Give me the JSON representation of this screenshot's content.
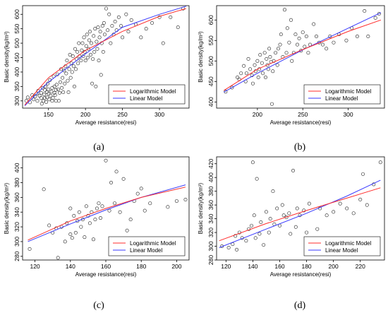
{
  "chart_data": [
    {
      "type": "scatter",
      "panel_label": "(a)",
      "xlabel": "Average resistance(resi)",
      "ylabel": "Basic density(kg/m³)",
      "xlim": [
        115,
        340
      ],
      "ylim": [
        275,
        630
      ],
      "xticks": [
        150,
        200,
        250,
        300
      ],
      "yticks": [
        300,
        350,
        400,
        450,
        500,
        550,
        600
      ],
      "legend": [
        "Logarithmic Model",
        "Linear Model"
      ],
      "legend_position": "bottom-right",
      "colors": {
        "log": "#ff2d2d",
        "linear": "#3a3aff",
        "points": "#222222"
      },
      "points": [
        [
          120,
          300
        ],
        [
          122,
          312
        ],
        [
          125,
          295
        ],
        [
          128,
          320
        ],
        [
          130,
          305
        ],
        [
          132,
          315
        ],
        [
          134,
          325
        ],
        [
          135,
          300
        ],
        [
          136,
          335
        ],
        [
          138,
          318
        ],
        [
          140,
          310
        ],
        [
          140,
          328
        ],
        [
          141,
          290
        ],
        [
          142,
          345
        ],
        [
          143,
          300
        ],
        [
          144,
          322
        ],
        [
          145,
          338
        ],
        [
          145,
          310
        ],
        [
          146,
          350
        ],
        [
          147,
          296
        ],
        [
          148,
          330
        ],
        [
          148,
          312
        ],
        [
          149,
          360
        ],
        [
          150,
          325
        ],
        [
          150,
          340
        ],
        [
          151,
          305
        ],
        [
          152,
          372
        ],
        [
          153,
          318
        ],
        [
          154,
          332
        ],
        [
          155,
          345
        ],
        [
          155,
          300
        ],
        [
          156,
          310
        ],
        [
          157,
          385
        ],
        [
          158,
          328
        ],
        [
          158,
          350
        ],
        [
          159,
          320
        ],
        [
          160,
          300
        ],
        [
          160,
          338
        ],
        [
          161,
          356
        ],
        [
          162,
          392
        ],
        [
          163,
          340
        ],
        [
          164,
          300
        ],
        [
          165,
          328
        ],
        [
          166,
          365
        ],
        [
          167,
          410
        ],
        [
          168,
          345
        ],
        [
          169,
          380
        ],
        [
          170,
          330
        ],
        [
          171,
          405
        ],
        [
          172,
          360
        ],
        [
          173,
          420
        ],
        [
          174,
          395
        ],
        [
          175,
          440
        ],
        [
          176,
          370
        ],
        [
          177,
          330
        ],
        [
          178,
          410
        ],
        [
          179,
          460
        ],
        [
          180,
          380
        ],
        [
          181,
          430
        ],
        [
          182,
          400
        ],
        [
          183,
          455
        ],
        [
          184,
          420
        ],
        [
          185,
          350
        ],
        [
          186,
          480
        ],
        [
          187,
          410
        ],
        [
          188,
          445
        ],
        [
          189,
          470
        ],
        [
          190,
          430
        ],
        [
          191,
          500
        ],
        [
          192,
          455
        ],
        [
          194,
          440
        ],
        [
          195,
          475
        ],
        [
          196,
          500
        ],
        [
          197,
          455
        ],
        [
          198,
          520
        ],
        [
          199,
          470
        ],
        [
          200,
          440
        ],
        [
          201,
          490
        ],
        [
          202,
          530
        ],
        [
          203,
          450
        ],
        [
          204,
          480
        ],
        [
          205,
          510
        ],
        [
          206,
          540
        ],
        [
          207,
          460
        ],
        [
          208,
          500
        ],
        [
          209,
          360
        ],
        [
          210,
          445
        ],
        [
          211,
          525
        ],
        [
          212,
          470
        ],
        [
          213,
          550
        ],
        [
          214,
          350
        ],
        [
          215,
          505
        ],
        [
          216,
          480
        ],
        [
          217,
          555
        ],
        [
          218,
          440
        ],
        [
          219,
          520
        ],
        [
          220,
          540
        ],
        [
          221,
          390
        ],
        [
          222,
          500
        ],
        [
          223,
          560
        ],
        [
          224,
          470
        ],
        [
          225,
          570
        ],
        [
          226,
          530
        ],
        [
          228,
          620
        ],
        [
          230,
          545
        ],
        [
          232,
          600
        ],
        [
          234,
          500
        ],
        [
          236,
          560
        ],
        [
          238,
          530
        ],
        [
          240,
          575
        ],
        [
          242,
          545
        ],
        [
          245,
          590
        ],
        [
          248,
          560
        ],
        [
          250,
          520
        ],
        [
          255,
          600
        ],
        [
          258,
          540
        ],
        [
          262,
          580
        ],
        [
          268,
          565
        ],
        [
          275,
          520
        ],
        [
          282,
          550
        ],
        [
          290,
          570
        ],
        [
          300,
          590
        ],
        [
          305,
          500
        ],
        [
          315,
          590
        ],
        [
          325,
          555
        ],
        [
          332,
          620
        ]
      ],
      "log_curve": [
        [
          118,
          286
        ],
        [
          150,
          380
        ],
        [
          200,
          475
        ],
        [
          250,
          541
        ],
        [
          300,
          593
        ],
        [
          336,
          620
        ]
      ],
      "linear_curve": [
        [
          118,
          283
        ],
        [
          150,
          365
        ],
        [
          200,
          463
        ],
        [
          250,
          555
        ],
        [
          300,
          600
        ],
        [
          336,
          628
        ]
      ]
    },
    {
      "type": "scatter",
      "panel_label": "(b)",
      "xlabel": "Average resistance(resi)",
      "ylabel": "Basic density(kg/m³)",
      "xlim": [
        155,
        340
      ],
      "ylim": [
        385,
        635
      ],
      "xticks": [
        200,
        250,
        300
      ],
      "yticks": [
        400,
        450,
        500,
        550,
        600
      ],
      "legend": [
        "Logarithmic Model",
        "Linear Model"
      ],
      "legend_position": "bottom-right",
      "colors": {
        "log": "#ff2d2d",
        "linear": "#3a3aff",
        "points": "#222222"
      },
      "points": [
        [
          165,
          425
        ],
        [
          172,
          435
        ],
        [
          178,
          460
        ],
        [
          180,
          455
        ],
        [
          182,
          470
        ],
        [
          185,
          488
        ],
        [
          187,
          450
        ],
        [
          188,
          470
        ],
        [
          190,
          505
        ],
        [
          192,
          480
        ],
        [
          194,
          465
        ],
        [
          195,
          445
        ],
        [
          197,
          490
        ],
        [
          198,
          475
        ],
        [
          200,
          500
        ],
        [
          201,
          460
        ],
        [
          202,
          480
        ],
        [
          203,
          515
        ],
        [
          205,
          495
        ],
        [
          206,
          470
        ],
        [
          208,
          520
        ],
        [
          209,
          460
        ],
        [
          210,
          505
        ],
        [
          211,
          490
        ],
        [
          212,
          480
        ],
        [
          213,
          530
        ],
        [
          214,
          510
        ],
        [
          215,
          498
        ],
        [
          216,
          395
        ],
        [
          217,
          475
        ],
        [
          218,
          500
        ],
        [
          220,
          520
        ],
        [
          222,
          490
        ],
        [
          223,
          530
        ],
        [
          225,
          540
        ],
        [
          226,
          565
        ],
        [
          228,
          510
        ],
        [
          230,
          625
        ],
        [
          232,
          520
        ],
        [
          233,
          580
        ],
        [
          235,
          545
        ],
        [
          237,
          600
        ],
        [
          238,
          500
        ],
        [
          240,
          520
        ],
        [
          242,
          565
        ],
        [
          244,
          540
        ],
        [
          246,
          555
        ],
        [
          248,
          525
        ],
        [
          250,
          570
        ],
        [
          252,
          535
        ],
        [
          254,
          560
        ],
        [
          256,
          520
        ],
        [
          258,
          540
        ],
        [
          262,
          590
        ],
        [
          265,
          560
        ],
        [
          268,
          545
        ],
        [
          272,
          540
        ],
        [
          276,
          530
        ],
        [
          280,
          560
        ],
        [
          284,
          545
        ],
        [
          290,
          565
        ],
        [
          298,
          550
        ],
        [
          304,
          580
        ],
        [
          310,
          560
        ],
        [
          318,
          622
        ],
        [
          322,
          560
        ],
        [
          330,
          605
        ],
        [
          334,
          615
        ]
      ],
      "log_curve": [
        [
          163,
          428
        ],
        [
          200,
          480
        ],
        [
          250,
          528
        ],
        [
          300,
          572
        ],
        [
          336,
          600
        ]
      ],
      "linear_curve": [
        [
          163,
          424
        ],
        [
          200,
          470
        ],
        [
          250,
          527
        ],
        [
          300,
          580
        ],
        [
          336,
          618
        ]
      ]
    },
    {
      "type": "scatter",
      "panel_label": "(c)",
      "xlabel": "Average resistance(resi)",
      "ylabel": "Basic density(kg/m³)",
      "xlim": [
        113,
        207
      ],
      "ylim": [
        275,
        415
      ],
      "xticks": [
        120,
        140,
        160,
        180,
        200
      ],
      "yticks": [
        280,
        300,
        320,
        340,
        360,
        380,
        400
      ],
      "legend": [
        "Logarithmic Model",
        "Linear Model"
      ],
      "legend_position": "bottom-right",
      "colors": {
        "log": "#ff2d2d",
        "linear": "#3a3aff",
        "points": "#222222"
      },
      "points": [
        [
          117,
          290
        ],
        [
          125,
          371
        ],
        [
          128,
          322
        ],
        [
          130,
          312
        ],
        [
          132,
          318
        ],
        [
          133,
          278
        ],
        [
          135,
          320
        ],
        [
          137,
          300
        ],
        [
          138,
          325
        ],
        [
          140,
          345
        ],
        [
          140,
          310
        ],
        [
          141,
          305
        ],
        [
          142,
          335
        ],
        [
          143,
          312
        ],
        [
          144,
          328
        ],
        [
          145,
          340
        ],
        [
          146,
          320
        ],
        [
          147,
          330
        ],
        [
          148,
          306
        ],
        [
          149,
          348
        ],
        [
          150,
          335
        ],
        [
          151,
          325
        ],
        [
          152,
          340
        ],
        [
          153,
          303
        ],
        [
          154,
          330
        ],
        [
          155,
          345
        ],
        [
          156,
          352
        ],
        [
          157,
          332
        ],
        [
          158,
          348
        ],
        [
          160,
          410
        ],
        [
          162,
          342
        ],
        [
          163,
          380
        ],
        [
          165,
          352
        ],
        [
          166,
          395
        ],
        [
          168,
          340
        ],
        [
          170,
          385
        ],
        [
          172,
          315
        ],
        [
          174,
          330
        ],
        [
          176,
          355
        ],
        [
          178,
          365
        ],
        [
          180,
          372
        ],
        [
          182,
          342
        ],
        [
          185,
          352
        ],
        [
          195,
          347
        ],
        [
          200,
          355
        ],
        [
          205,
          357
        ]
      ],
      "log_curve": [
        [
          116,
          302
        ],
        [
          140,
          328
        ],
        [
          160,
          345
        ],
        [
          180,
          360
        ],
        [
          205,
          374
        ]
      ],
      "linear_curve": [
        [
          116,
          300
        ],
        [
          140,
          324
        ],
        [
          160,
          343
        ],
        [
          180,
          360
        ],
        [
          205,
          377
        ]
      ]
    },
    {
      "type": "scatter",
      "panel_label": "(d)",
      "xlabel": "Average resistance(resi)",
      "ylabel": "Basic density(kg/m³)",
      "xlim": [
        113,
        238
      ],
      "ylim": [
        280,
        430
      ],
      "xticks": [
        120,
        140,
        160,
        180,
        200,
        220
      ],
      "yticks": [
        280,
        300,
        320,
        340,
        360,
        380,
        400,
        420
      ],
      "legend": [
        "Logarithmic Model",
        "Linear Model"
      ],
      "legend_position": "bottom-right",
      "colors": {
        "log": "#ff2d2d",
        "linear": "#3a3aff",
        "points": "#222222"
      },
      "points": [
        [
          117,
          300
        ],
        [
          122,
          298
        ],
        [
          125,
          303
        ],
        [
          127,
          315
        ],
        [
          128,
          295
        ],
        [
          130,
          320
        ],
        [
          132,
          312
        ],
        [
          135,
          308
        ],
        [
          137,
          325
        ],
        [
          139,
          330
        ],
        [
          140,
          422
        ],
        [
          141,
          345
        ],
        [
          142,
          312
        ],
        [
          143,
          398
        ],
        [
          145,
          318
        ],
        [
          146,
          335
        ],
        [
          148,
          302
        ],
        [
          150,
          350
        ],
        [
          152,
          320
        ],
        [
          153,
          340
        ],
        [
          155,
          380
        ],
        [
          156,
          332
        ],
        [
          158,
          355
        ],
        [
          160,
          330
        ],
        [
          162,
          360
        ],
        [
          163,
          345
        ],
        [
          165,
          342
        ],
        [
          167,
          348
        ],
        [
          168,
          318
        ],
        [
          170,
          410
        ],
        [
          172,
          328
        ],
        [
          173,
          355
        ],
        [
          175,
          345
        ],
        [
          178,
          352
        ],
        [
          180,
          320
        ],
        [
          182,
          362
        ],
        [
          185,
          308
        ],
        [
          188,
          325
        ],
        [
          190,
          355
        ],
        [
          195,
          345
        ],
        [
          200,
          350
        ],
        [
          205,
          362
        ],
        [
          210,
          355
        ],
        [
          215,
          348
        ],
        [
          220,
          368
        ],
        [
          222,
          405
        ],
        [
          225,
          360
        ],
        [
          230,
          390
        ],
        [
          235,
          422
        ]
      ],
      "log_curve": [
        [
          115,
          308
        ],
        [
          150,
          333
        ],
        [
          180,
          352
        ],
        [
          210,
          370
        ],
        [
          235,
          385
        ]
      ],
      "linear_curve": [
        [
          115,
          298
        ],
        [
          150,
          325
        ],
        [
          180,
          348
        ],
        [
          210,
          373
        ],
        [
          235,
          396
        ]
      ]
    }
  ]
}
